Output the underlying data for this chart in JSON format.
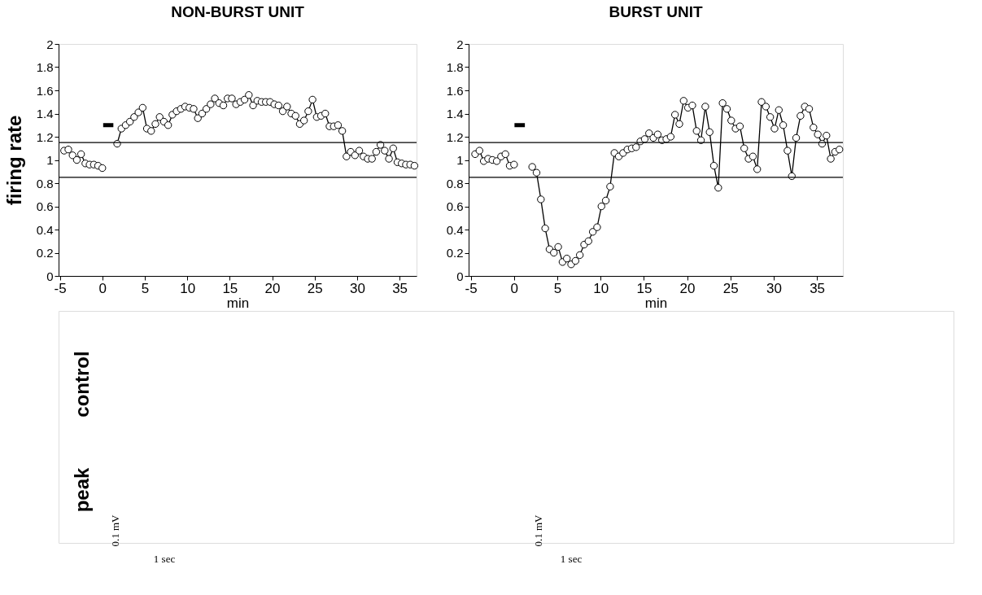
{
  "chart_data": [
    {
      "type": "line",
      "title": "NON-BURST UNIT",
      "xlabel": "min",
      "ylabel": "firing rate",
      "xlim": [
        -5.15,
        37
      ],
      "xticks": [
        -5,
        0,
        5,
        10,
        15,
        20,
        25,
        30,
        35
      ],
      "ylim": [
        0,
        2
      ],
      "yticks": [
        0,
        0.2,
        0.4,
        0.6,
        0.8,
        1,
        1.2,
        1.4,
        1.6,
        1.8,
        2
      ],
      "grid": false,
      "marker": "circle",
      "line_style": "solid",
      "series": [
        {
          "color": "#000000",
          "x": [
            -4.5,
            -4,
            -3.5,
            -3,
            -2.5,
            -2,
            -1.5,
            -1,
            -0.5,
            0,
            1,
            1.75,
            2.25,
            2.75,
            3.25,
            3.75,
            4.25,
            4.75,
            5.25,
            5.75,
            6.25,
            6.75,
            7.25,
            7.75,
            8.25,
            8.75,
            9.25,
            9.75,
            10.25,
            10.75,
            11.25,
            11.75,
            12.25,
            12.75,
            13.25,
            13.75,
            14.25,
            14.75,
            15.25,
            15.75,
            16.25,
            16.75,
            17.25,
            17.75,
            18.25,
            18.75,
            19.25,
            19.75,
            20.25,
            20.75,
            21.25,
            21.75,
            22.25,
            22.75,
            23.25,
            23.75,
            24.25,
            24.75,
            25.25,
            25.75,
            26.25,
            26.75,
            27.25,
            27.75,
            28.25,
            28.75,
            29.25,
            29.75,
            30.25,
            30.75,
            31.25,
            31.75,
            32.25,
            32.75,
            33.25,
            33.75,
            34.25,
            34.75,
            35.25,
            35.75,
            36.25,
            36.75
          ],
          "values": [
            1.08,
            1.09,
            1.04,
            1.0,
            1.05,
            0.97,
            0.96,
            0.96,
            0.95,
            0.93,
            null,
            1.14,
            1.27,
            1.3,
            1.33,
            1.37,
            1.41,
            1.45,
            1.27,
            1.25,
            1.31,
            1.37,
            1.33,
            1.3,
            1.39,
            1.42,
            1.44,
            1.46,
            1.45,
            1.44,
            1.36,
            1.4,
            1.44,
            1.48,
            1.53,
            1.49,
            1.47,
            1.53,
            1.53,
            1.48,
            1.5,
            1.52,
            1.56,
            1.47,
            1.51,
            1.5,
            1.5,
            1.5,
            1.48,
            1.47,
            1.42,
            1.46,
            1.4,
            1.38,
            1.31,
            1.34,
            1.42,
            1.52,
            1.37,
            1.38,
            1.4,
            1.29,
            1.29,
            1.3,
            1.25,
            1.03,
            1.07,
            1.04,
            1.08,
            1.03,
            1.01,
            1.01,
            1.07,
            1.13,
            1.08,
            1.01,
            1.1,
            0.98,
            0.97,
            0.96,
            0.96,
            0.95
          ]
        },
        {
          "color": "#000000",
          "type": "line",
          "marker": "none",
          "x": [
            0.1,
            1.3
          ],
          "values": [
            1.3,
            1.3
          ]
        }
      ],
      "ref_lines": [
        {
          "axis": "y",
          "value": 1.15,
          "color": "#000000"
        },
        {
          "axis": "y",
          "value": 0.85,
          "color": "#000000"
        }
      ]
    },
    {
      "type": "line",
      "title": "BURST UNIT",
      "xlabel": "min",
      "xlim": [
        -5.25,
        38
      ],
      "xticks": [
        -5,
        0,
        5,
        10,
        15,
        20,
        25,
        30,
        35
      ],
      "ylim": [
        0,
        2
      ],
      "yticks": [
        0,
        0.2,
        0.4,
        0.6,
        0.8,
        1,
        1.2,
        1.4,
        1.6,
        1.8,
        2
      ],
      "grid": false,
      "marker": "circle",
      "line_style": "solid",
      "series": [
        {
          "color": "#000000",
          "x": [
            -4.5,
            -4,
            -3.5,
            -3,
            -2.5,
            -2,
            -1.5,
            -1,
            -0.5,
            0,
            1,
            2.1,
            2.6,
            3.1,
            3.6,
            4.1,
            4.6,
            5.1,
            5.6,
            6.1,
            6.6,
            7.1,
            7.6,
            8.1,
            8.6,
            9.1,
            9.6,
            10.1,
            10.6,
            11.1,
            11.6,
            12.1,
            12.6,
            13.1,
            13.6,
            14.1,
            14.6,
            15.1,
            15.6,
            16.1,
            16.6,
            17.1,
            17.6,
            18.1,
            18.6,
            19.1,
            19.6,
            20.1,
            20.6,
            21.1,
            21.6,
            22.1,
            22.6,
            23.1,
            23.6,
            24.1,
            24.6,
            25.1,
            25.6,
            26.1,
            26.6,
            27.1,
            27.6,
            28.1,
            28.6,
            29.1,
            29.6,
            30.1,
            30.6,
            31.1,
            31.6,
            32.1,
            32.6,
            33.1,
            33.6,
            34.1,
            34.6,
            35.1,
            35.6,
            36.1,
            36.6,
            37.1,
            37.6
          ],
          "values": [
            1.05,
            1.08,
            0.99,
            1.01,
            1.0,
            0.99,
            1.03,
            1.05,
            0.95,
            0.96,
            null,
            0.94,
            0.89,
            0.66,
            0.41,
            0.23,
            0.2,
            0.25,
            0.12,
            0.15,
            0.1,
            0.13,
            0.18,
            0.27,
            0.3,
            0.38,
            0.42,
            0.6,
            0.65,
            0.77,
            1.06,
            1.03,
            1.06,
            1.09,
            1.1,
            1.11,
            1.16,
            1.18,
            1.23,
            1.19,
            1.22,
            1.17,
            1.18,
            1.2,
            1.39,
            1.31,
            1.51,
            1.45,
            1.47,
            1.25,
            1.17,
            1.46,
            1.24,
            0.95,
            0.76,
            1.49,
            1.44,
            1.34,
            1.27,
            1.29,
            1.1,
            1.01,
            1.03,
            0.92,
            1.5,
            1.46,
            1.37,
            1.27,
            1.43,
            1.3,
            1.08,
            0.86,
            1.19,
            1.38,
            1.46,
            1.44,
            1.28,
            1.22,
            1.14,
            1.21,
            1.01,
            1.07,
            1.09
          ]
        },
        {
          "color": "#000000",
          "type": "line",
          "marker": "none",
          "x": [
            0.05,
            1.25
          ],
          "values": [
            1.3,
            1.3
          ]
        }
      ],
      "ref_lines": [
        {
          "axis": "y",
          "value": 1.15,
          "color": "#000000"
        },
        {
          "axis": "y",
          "value": 0.85,
          "color": "#000000"
        }
      ]
    },
    {
      "type": "other",
      "annotations": [
        "control",
        "peak",
        "0.1 mV",
        "1 sec",
        "0.1 mV",
        "1 sec"
      ]
    }
  ]
}
